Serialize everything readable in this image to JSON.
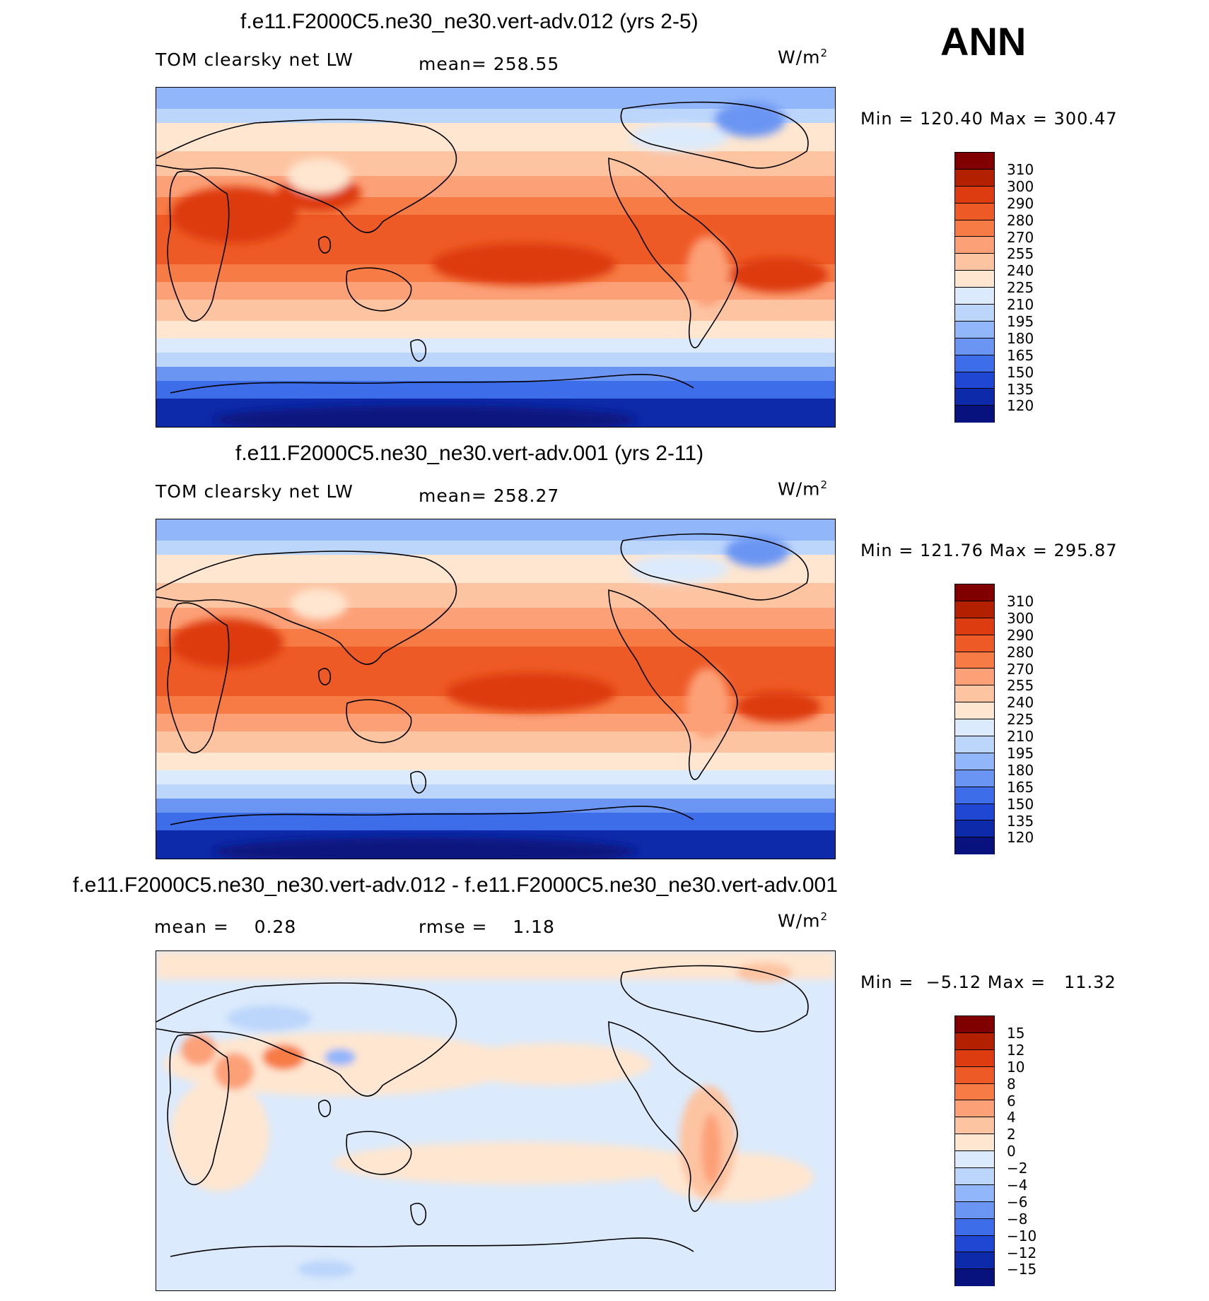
{
  "season": "ANN",
  "panels": [
    {
      "title": "f.e11.F2000C5.ne30_ne30.vert-adv.012 (yrs 2-5)",
      "left_label": "TOM clearsky net LW",
      "center_label": "mean= 258.55",
      "units": "W/m",
      "units_sup": "2",
      "minmax": "Min = 120.40 Max = 300.47",
      "levels": [
        "310",
        "300",
        "290",
        "280",
        "270",
        "255",
        "240",
        "225",
        "210",
        "195",
        "180",
        "165",
        "150",
        "135",
        "120"
      ]
    },
    {
      "title": "f.e11.F2000C5.ne30_ne30.vert-adv.001 (yrs 2-11)",
      "left_label": "TOM clearsky net LW",
      "center_label": "mean= 258.27",
      "units": "W/m",
      "units_sup": "2",
      "minmax": "Min = 121.76 Max = 295.87",
      "levels": [
        "310",
        "300",
        "290",
        "280",
        "270",
        "255",
        "240",
        "225",
        "210",
        "195",
        "180",
        "165",
        "150",
        "135",
        "120"
      ]
    },
    {
      "title": "f.e11.F2000C5.ne30_ne30.vert-adv.012 - f.e11.F2000C5.ne30_ne30.vert-adv.001",
      "left_label": "mean =    0.28",
      "center_label": "rmse =    1.18",
      "units": "W/m",
      "units_sup": "2",
      "minmax": "Min =  −5.12 Max =   11.32",
      "levels": [
        "15",
        "12",
        "10",
        "8",
        "6",
        "4",
        "2",
        "0",
        "−2",
        "−4",
        "−6",
        "−8",
        "−10",
        "−12",
        "−15"
      ]
    }
  ],
  "colors": {
    "scale": [
      "#800000",
      "#b32000",
      "#dd3b10",
      "#ee5a26",
      "#f77b45",
      "#fca078",
      "#fdc4a2",
      "#fee6d0",
      "#dbeafc",
      "#bcd5fb",
      "#92b6fa",
      "#6b95f3",
      "#3e6de9",
      "#1f47d4",
      "#0d2aaa",
      "#08127e"
    ]
  }
}
